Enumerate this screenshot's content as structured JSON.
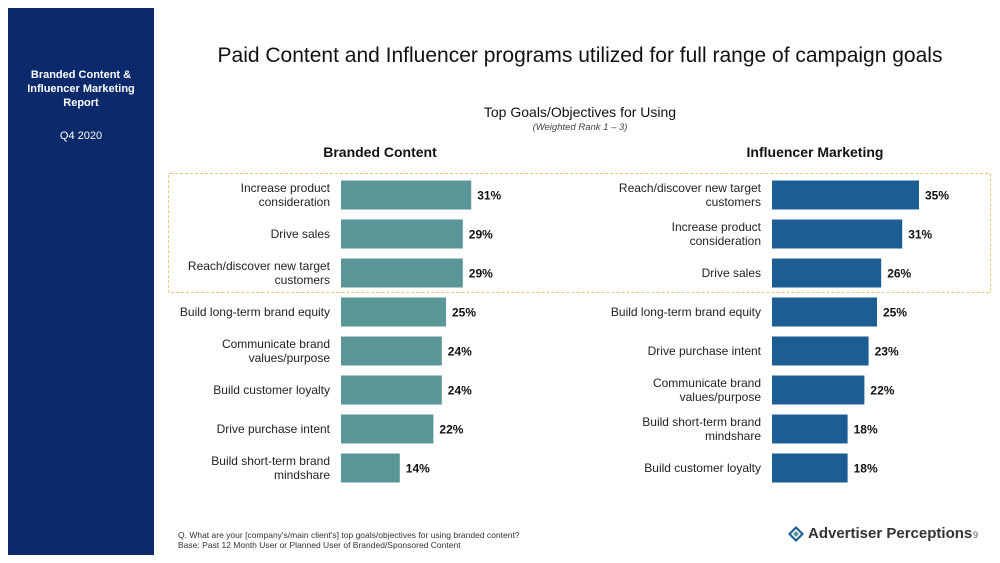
{
  "sidebar": {
    "title": "Branded Content & Influencer Marketing Report",
    "date": "Q4 2020"
  },
  "page": {
    "title": "Paid Content and Influencer programs utilized for full range of campaign goals"
  },
  "colors": {
    "sidebar": "#0b2a6b",
    "branded": "#5a9597",
    "influencer": "#1c5e94",
    "highlight": "#e6c872"
  },
  "chart_data": [
    {
      "type": "bar",
      "orientation": "horizontal",
      "title": "Top Goals/Objectives for Using",
      "subtitle": "(Weighted Rank 1 – 3)",
      "panel_title": "Branded Content",
      "categories": [
        "Increase product consideration",
        "Drive sales",
        "Reach/discover new target customers",
        "Build long-term brand equity",
        "Communicate brand values/purpose",
        "Build customer loyalty",
        "Drive purchase intent",
        "Build short-term brand mindshare"
      ],
      "label_lines": [
        [
          "Increase product",
          "consideration"
        ],
        [
          "Drive sales"
        ],
        [
          "Reach/discover new target",
          "customers"
        ],
        [
          "Build long-term brand equity"
        ],
        [
          "Communicate brand",
          "values/purpose"
        ],
        [
          "Build customer loyalty"
        ],
        [
          "Drive purchase intent"
        ],
        [
          "Build short-term brand",
          "mindshare"
        ]
      ],
      "values": [
        31,
        29,
        29,
        25,
        24,
        24,
        22,
        14
      ],
      "unit": "%",
      "highlighted_top": 3
    },
    {
      "type": "bar",
      "orientation": "horizontal",
      "panel_title": "Influencer Marketing",
      "categories": [
        "Reach/discover new target customers",
        "Increase product consideration",
        "Drive sales",
        "Build long-term brand equity",
        "Drive purchase intent",
        "Communicate brand values/purpose",
        "Build short-term brand mindshare",
        "Build customer loyalty"
      ],
      "label_lines": [
        [
          "Reach/discover new target",
          "customers"
        ],
        [
          "Increase product",
          "consideration"
        ],
        [
          "Drive sales"
        ],
        [
          "Build long-term brand equity"
        ],
        [
          "Drive purchase intent"
        ],
        [
          "Communicate brand",
          "values/purpose"
        ],
        [
          "Build short-term brand",
          "mindshare"
        ],
        [
          "Build customer loyalty"
        ]
      ],
      "values": [
        35,
        31,
        26,
        25,
        23,
        22,
        18,
        18
      ],
      "unit": "%",
      "highlighted_top": 3
    }
  ],
  "footnote": {
    "question": "Q. What are your [company's/main client's] top goals/objectives for using branded content?",
    "base": "Base: Past 12 Month User or Planned User of Branded/Sponsored Content"
  },
  "logo": {
    "text": "Advertiser Perceptions",
    "icon": "advertiser-perceptions-logo-icon"
  },
  "page_number": "9"
}
